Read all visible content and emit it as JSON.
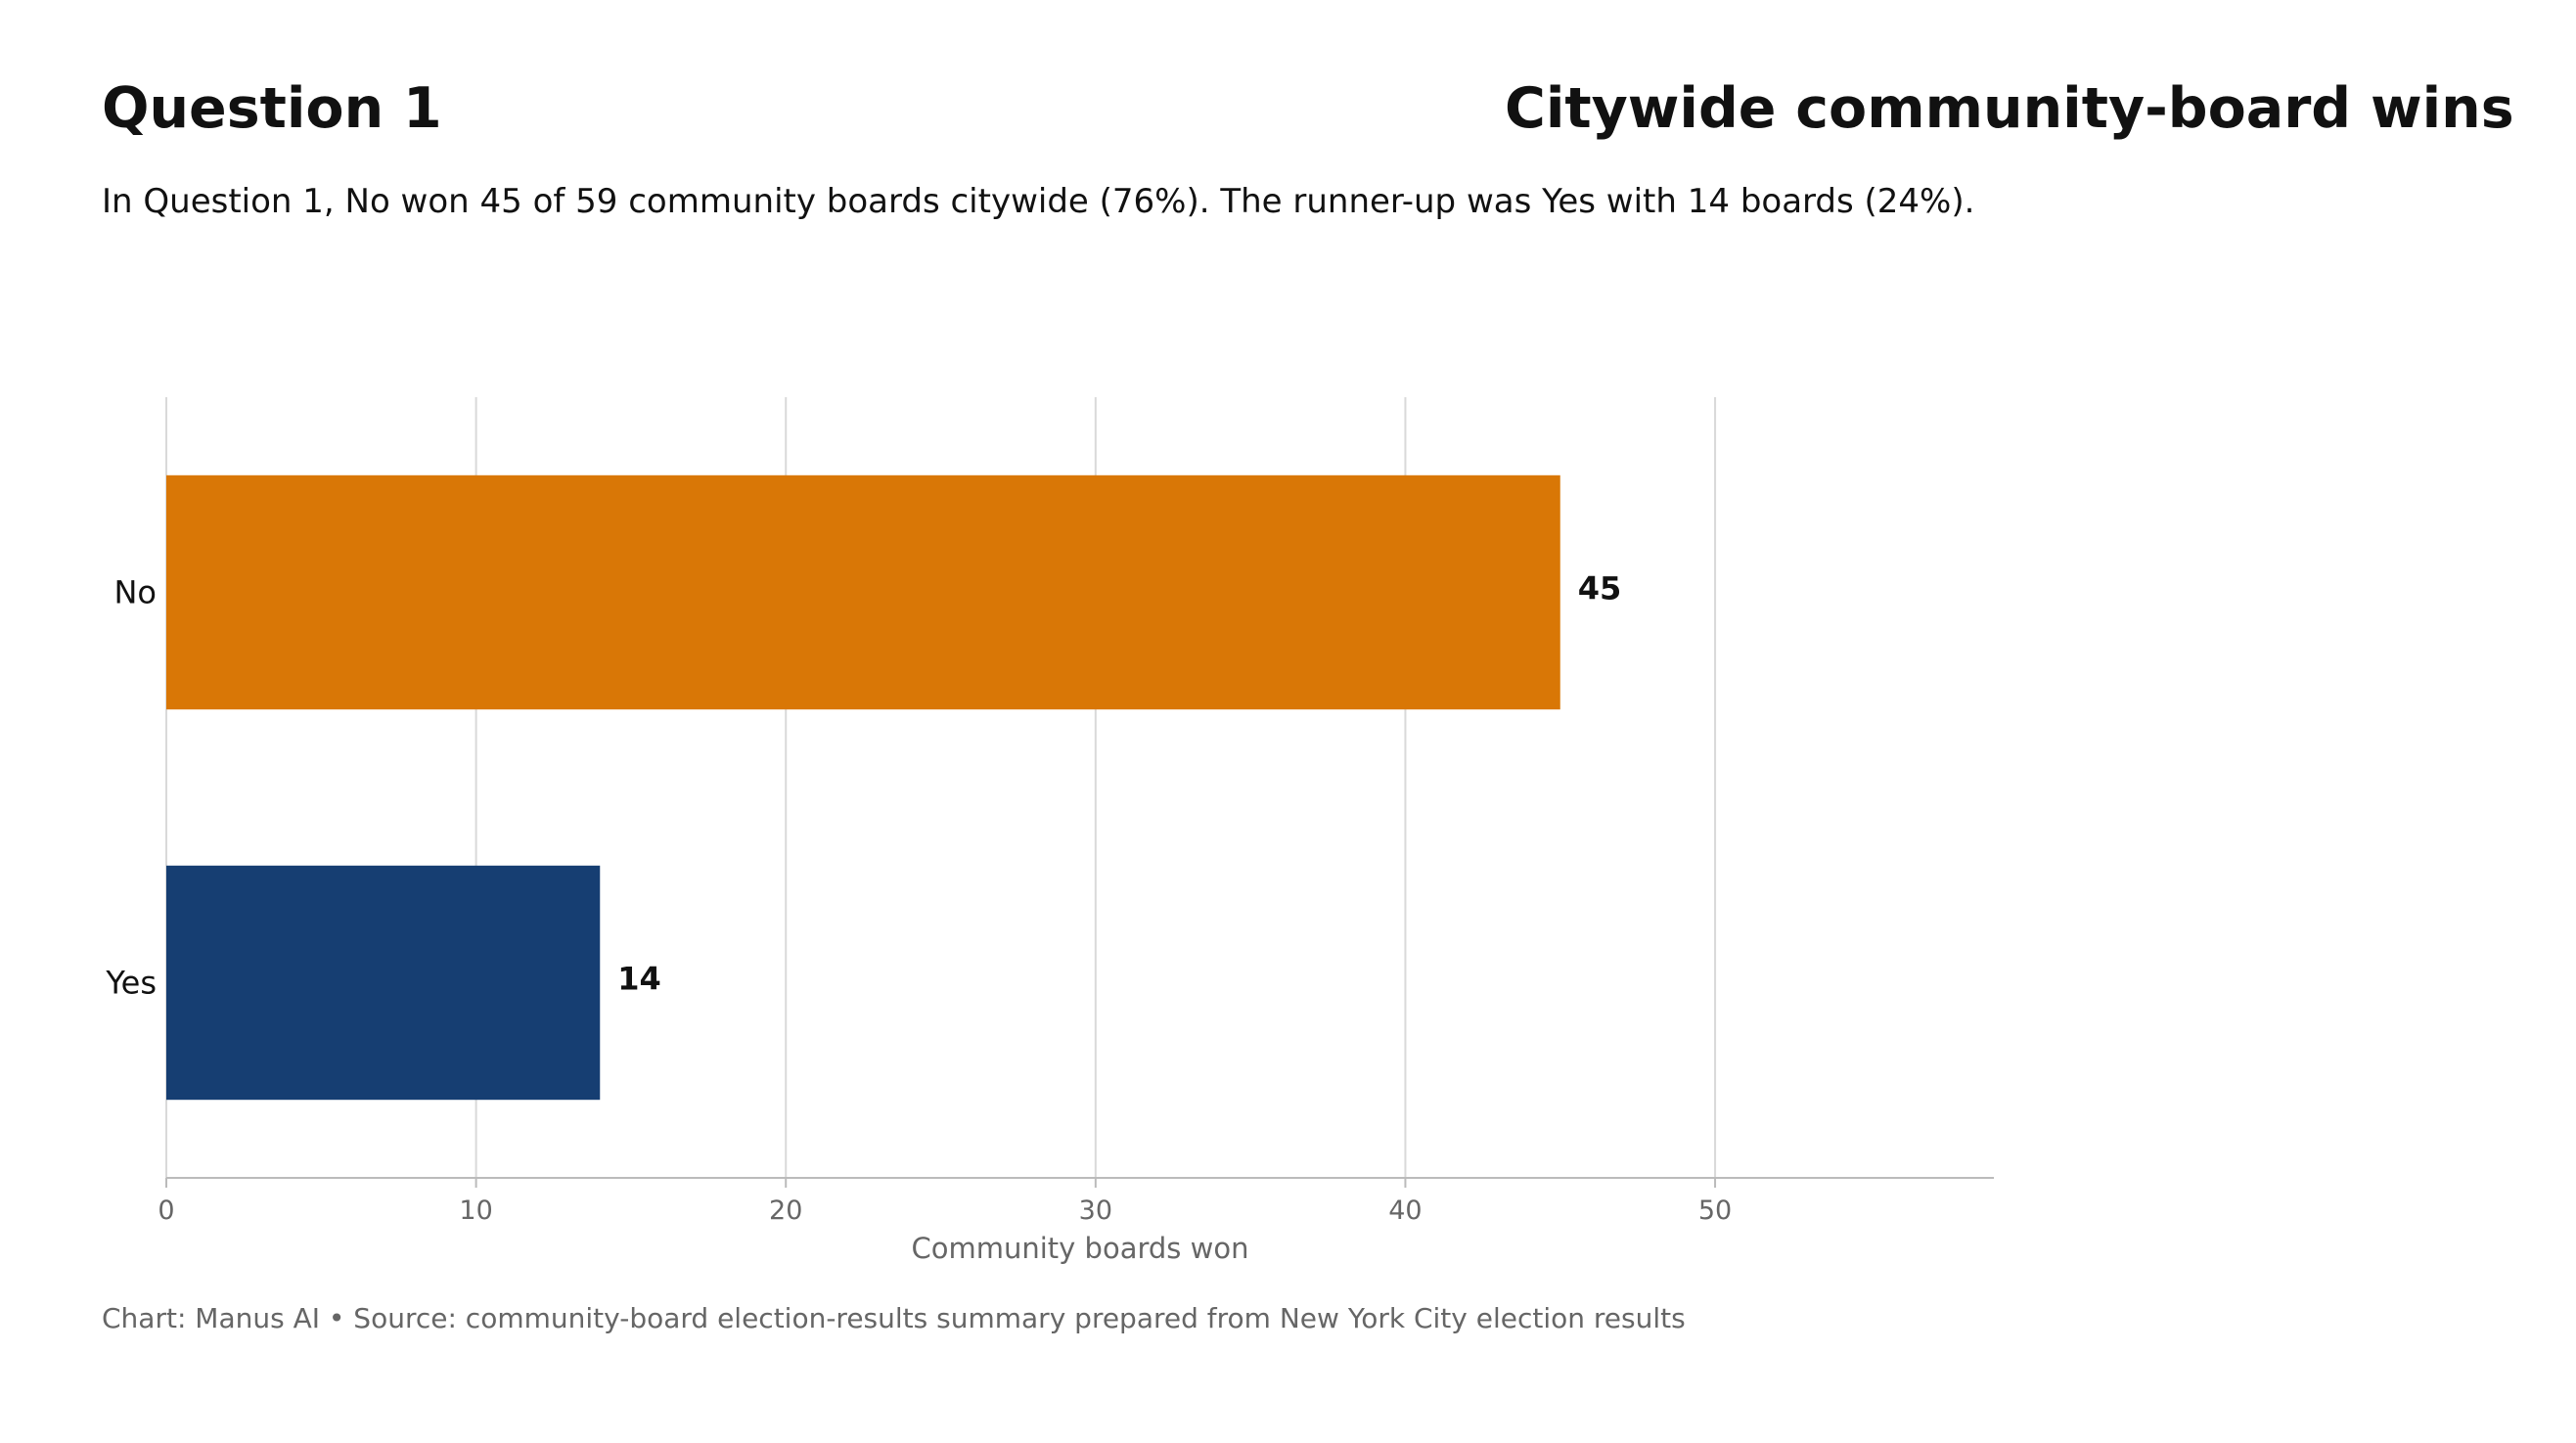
{
  "header": {
    "title": "Question 1",
    "chart_title": "Citywide community-board wins",
    "subtitle": "In Question 1, No won 45 of 59 community boards citywide (76%). The runner-up was Yes with 14 boards (24%)."
  },
  "footer": {
    "source": "Chart: Manus AI • Source: community-board election-results summary prepared from New York City election results"
  },
  "chart_data": {
    "type": "bar",
    "orientation": "horizontal",
    "categories": [
      "No",
      "Yes"
    ],
    "values": [
      45,
      14
    ],
    "colors": [
      "#D97706",
      "#163E72"
    ],
    "xlabel": "Community boards won",
    "ylabel": "",
    "xlim": [
      0,
      59
    ],
    "xticks": [
      0,
      10,
      20,
      30,
      40,
      50
    ],
    "grid": "vertical",
    "grid_color": "#D9D9D9",
    "axis_color": "#BBBBBB"
  }
}
